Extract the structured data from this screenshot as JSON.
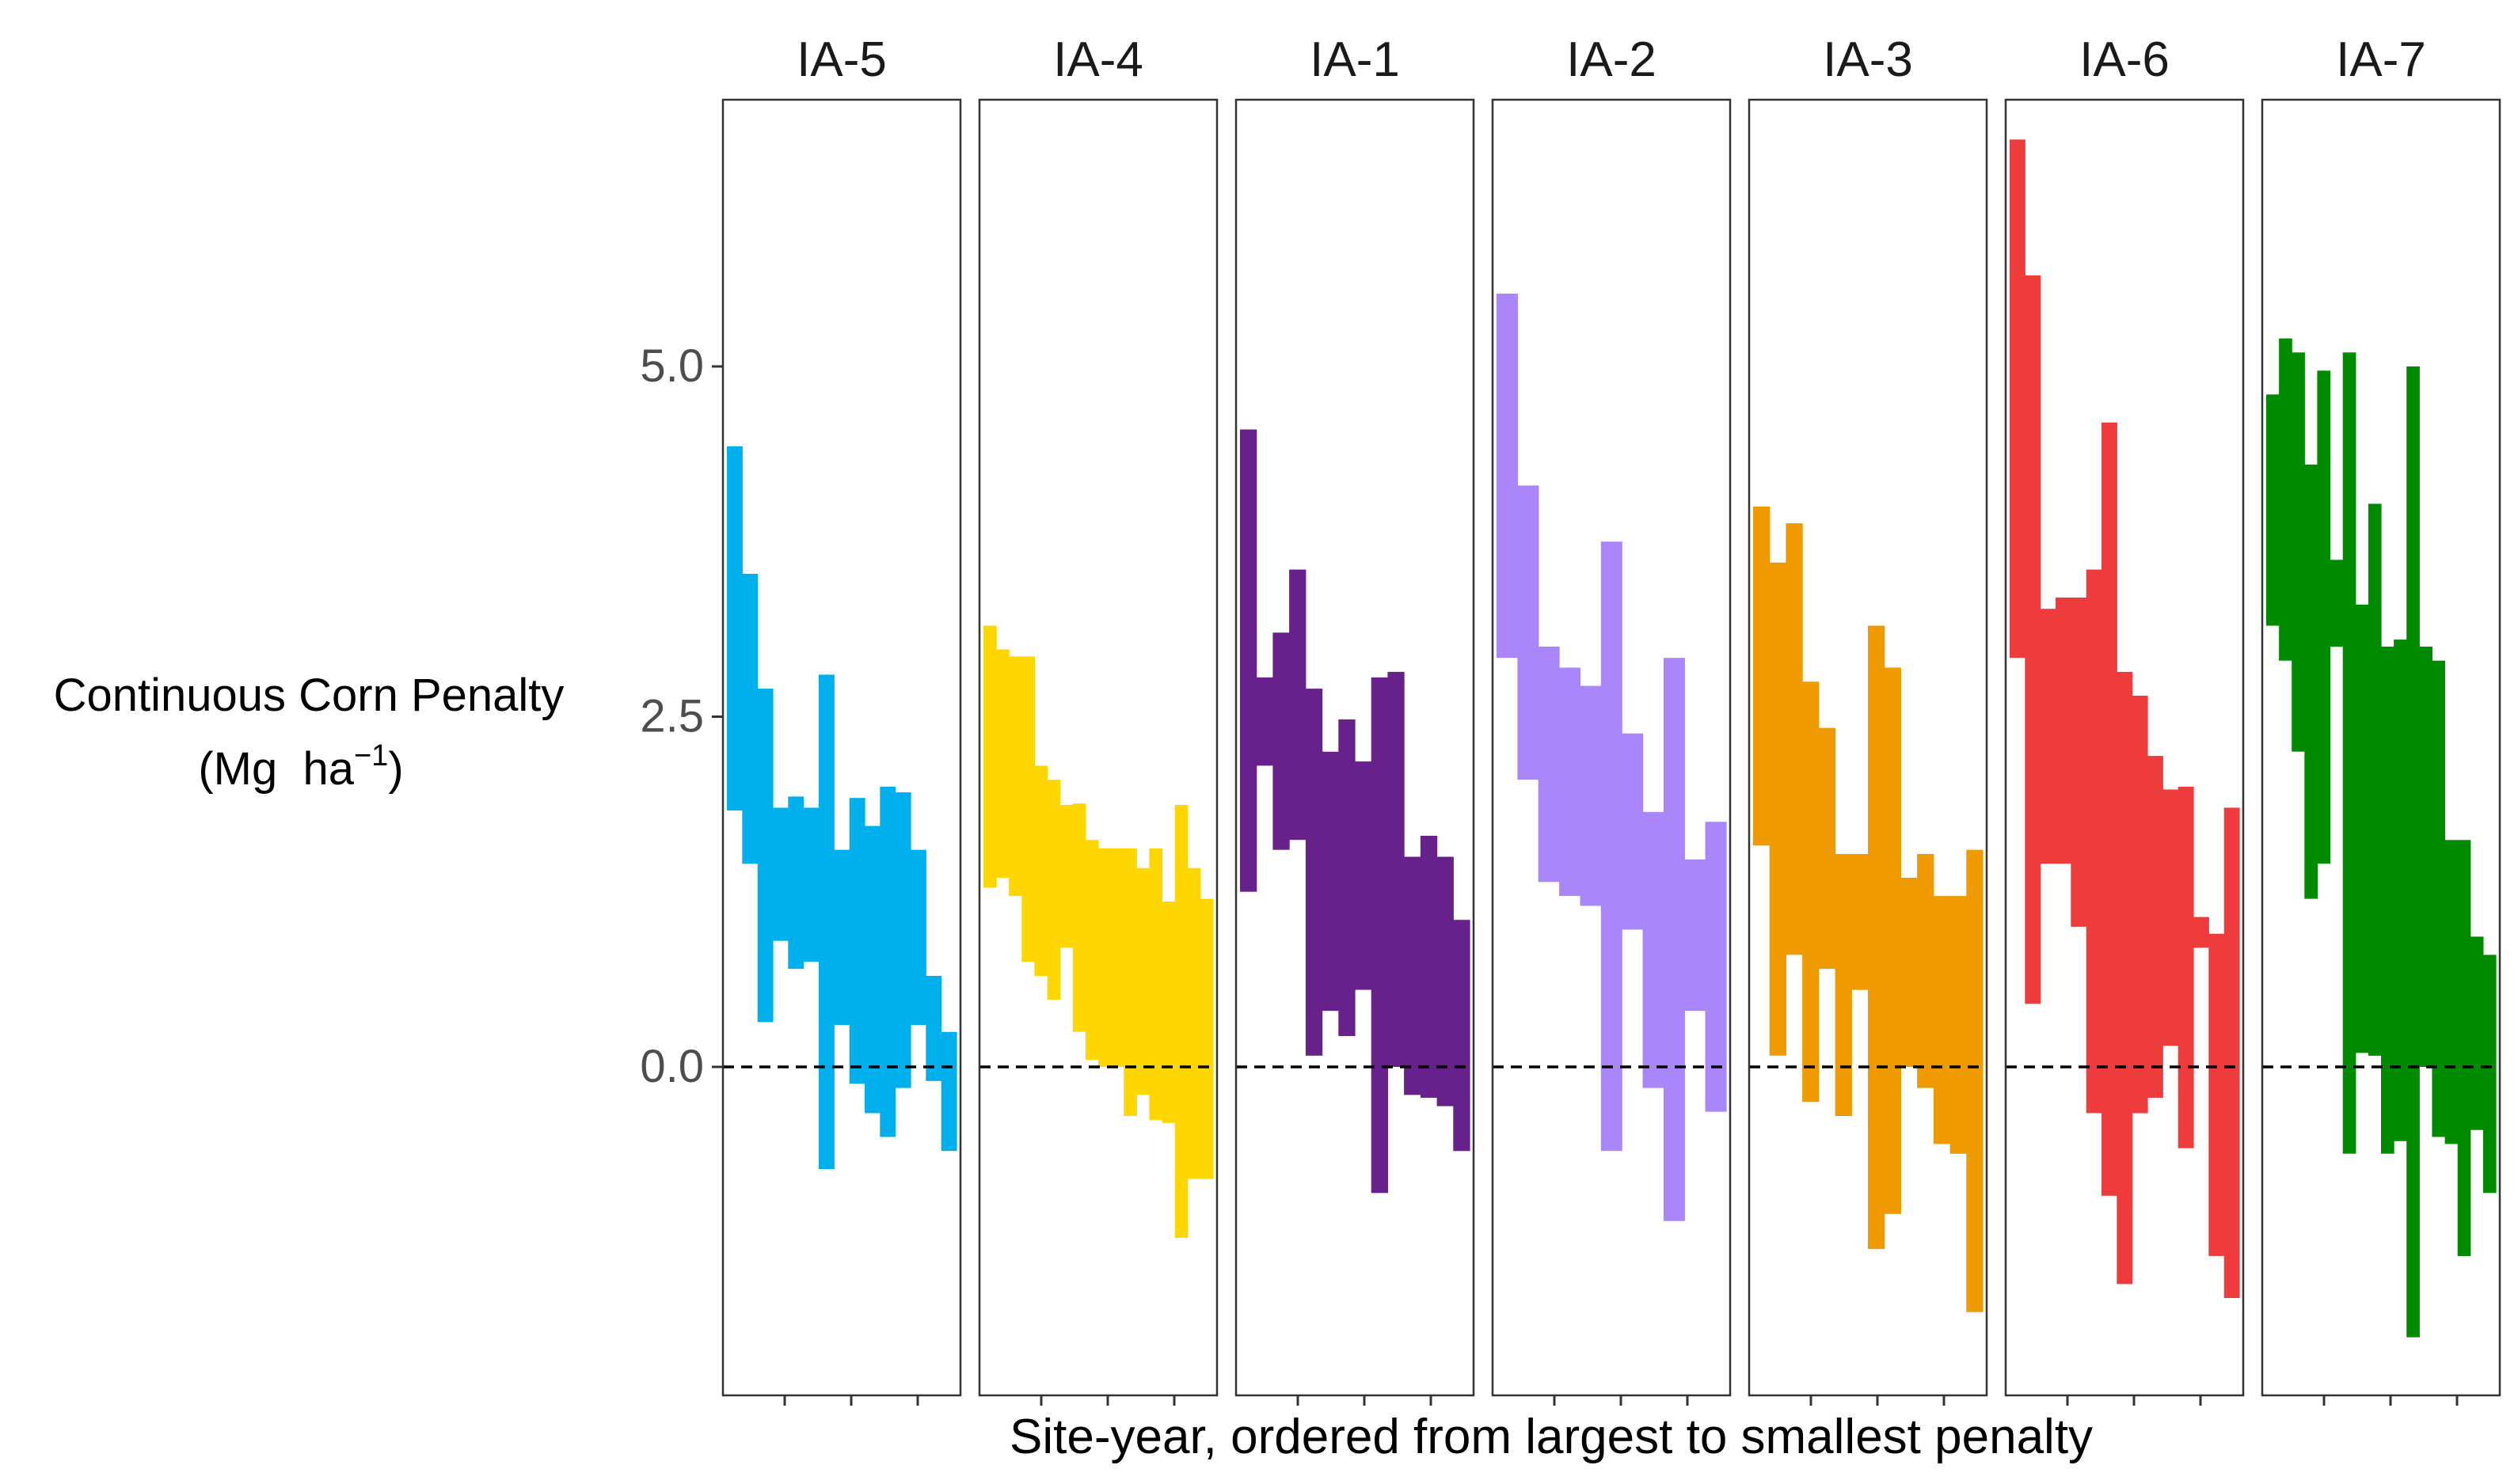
{
  "chart_data": {
    "type": "bar",
    "description_note": "",
    "ylabel_line1": "Continuous Corn Penalty",
    "ylabel_unit_main": "(Mg  ha",
    "ylabel_unit_sup": "−1",
    "ylabel_unit_close": ")",
    "xlabel": "Site-year, ordered from largest to smallest penalty",
    "y_ticks": [
      "0.0",
      "2.5",
      "5.0"
    ],
    "y_tick_values": [
      0.0,
      2.5,
      5.0
    ],
    "ylim": [
      -2.35,
      6.9
    ],
    "reference_line": 0,
    "panels": [
      {
        "name": "IA-5",
        "color": "#00B0EC",
        "bars": [
          [
            1.83,
            4.43
          ],
          [
            1.45,
            3.52
          ],
          [
            0.32,
            2.7
          ],
          [
            0.9,
            1.85
          ],
          [
            0.7,
            1.93
          ],
          [
            0.75,
            1.85
          ],
          [
            -0.73,
            2.8
          ],
          [
            0.3,
            1.55
          ],
          [
            -0.12,
            1.92
          ],
          [
            -0.33,
            1.72
          ],
          [
            -0.5,
            2.0
          ],
          [
            -0.15,
            1.96
          ],
          [
            0.3,
            1.55
          ],
          [
            -0.1,
            0.65
          ],
          [
            -0.6,
            0.25
          ]
        ]
      },
      {
        "name": "IA-4",
        "color": "#FFD700",
        "bars": [
          [
            1.28,
            3.15
          ],
          [
            1.35,
            2.98
          ],
          [
            1.22,
            2.93
          ],
          [
            0.75,
            2.93
          ],
          [
            0.65,
            2.15
          ],
          [
            0.48,
            2.05
          ],
          [
            0.85,
            1.87
          ],
          [
            0.25,
            1.88
          ],
          [
            0.05,
            1.62
          ],
          [
            0.0,
            1.56
          ],
          [
            0.0,
            1.56
          ],
          [
            -0.35,
            1.56
          ],
          [
            -0.2,
            1.42
          ],
          [
            -0.38,
            1.56
          ],
          [
            -0.4,
            1.18
          ],
          [
            -1.22,
            1.87
          ],
          [
            -0.8,
            1.42
          ],
          [
            -0.8,
            1.2
          ]
        ]
      },
      {
        "name": "IA-1",
        "color": "#66228A",
        "bars": [
          [
            1.25,
            4.55
          ],
          [
            2.15,
            2.78
          ],
          [
            1.55,
            3.1
          ],
          [
            1.62,
            3.55
          ],
          [
            0.08,
            2.7
          ],
          [
            0.4,
            2.25
          ],
          [
            0.22,
            2.48
          ],
          [
            0.55,
            2.18
          ],
          [
            -0.9,
            2.78
          ],
          [
            0.0,
            2.82
          ],
          [
            -0.2,
            1.5
          ],
          [
            -0.22,
            1.65
          ],
          [
            -0.28,
            1.5
          ],
          [
            -0.6,
            1.05
          ]
        ]
      },
      {
        "name": "IA-2",
        "color": "#A987FA",
        "bars": [
          [
            2.92,
            5.52
          ],
          [
            2.05,
            4.15
          ],
          [
            1.32,
            3.0
          ],
          [
            1.22,
            2.85
          ],
          [
            1.15,
            2.72
          ],
          [
            -0.6,
            3.75
          ],
          [
            0.98,
            2.38
          ],
          [
            -0.15,
            1.82
          ],
          [
            -1.1,
            2.92
          ],
          [
            0.4,
            1.48
          ],
          [
            -0.32,
            1.75
          ]
        ]
      },
      {
        "name": "IA-3",
        "color": "#EE9A00",
        "bars": [
          [
            1.58,
            4.0
          ],
          [
            0.08,
            3.6
          ],
          [
            0.8,
            3.88
          ],
          [
            -0.25,
            2.75
          ],
          [
            0.7,
            2.42
          ],
          [
            -0.35,
            1.52
          ],
          [
            0.55,
            1.52
          ],
          [
            -1.3,
            3.15
          ],
          [
            -1.05,
            2.85
          ],
          [
            0.0,
            1.35
          ],
          [
            -0.15,
            1.52
          ],
          [
            -0.55,
            1.22
          ],
          [
            -0.62,
            1.22
          ],
          [
            -1.75,
            1.55
          ]
        ]
      },
      {
        "name": "IA-6",
        "color": "#EE3C3C",
        "bars": [
          [
            2.92,
            6.62
          ],
          [
            0.45,
            5.65
          ],
          [
            1.45,
            3.27
          ],
          [
            1.45,
            3.35
          ],
          [
            1.0,
            3.35
          ],
          [
            -0.33,
            3.55
          ],
          [
            -0.92,
            4.6
          ],
          [
            -1.55,
            2.82
          ],
          [
            -0.33,
            2.65
          ],
          [
            -0.22,
            2.22
          ],
          [
            0.15,
            1.98
          ],
          [
            -0.58,
            2.0
          ],
          [
            0.85,
            1.07
          ],
          [
            -1.35,
            0.95
          ],
          [
            -1.65,
            1.85
          ]
        ]
      },
      {
        "name": "IA-7",
        "color": "#008B00",
        "bars": [
          [
            3.15,
            4.8
          ],
          [
            2.9,
            5.2
          ],
          [
            2.25,
            5.1
          ],
          [
            1.2,
            4.3
          ],
          [
            1.45,
            4.97
          ],
          [
            3.0,
            3.62
          ],
          [
            -0.62,
            5.1
          ],
          [
            0.1,
            3.3
          ],
          [
            0.08,
            4.02
          ],
          [
            -0.62,
            3.0
          ],
          [
            -0.53,
            3.05
          ],
          [
            -1.93,
            5.0
          ],
          [
            0.0,
            3.0
          ],
          [
            -0.5,
            2.9
          ],
          [
            -0.55,
            1.62
          ],
          [
            -1.35,
            1.62
          ],
          [
            -0.45,
            0.93
          ],
          [
            -0.9,
            0.8
          ]
        ]
      }
    ]
  }
}
